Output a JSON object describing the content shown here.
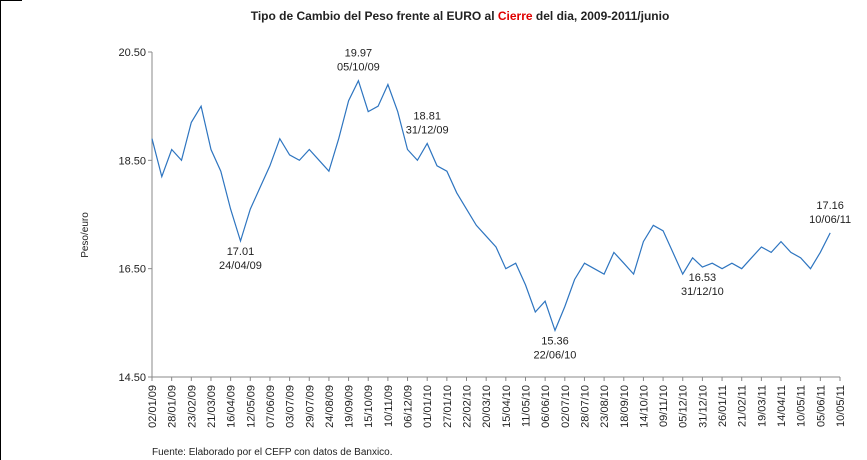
{
  "chart_data": {
    "type": "line",
    "title": [
      "Tipo de Cambio del Peso frente al EURO al ",
      "Cierre",
      " del dia, 2009-2011/junio"
    ],
    "title_highlight_color": "#e00000",
    "y_label": "Peso/euro",
    "source": "Fuente: Elaborado por el CEFP con datos de Banxico.",
    "categories": [
      "02/01/09",
      null,
      "28/01/09",
      null,
      "23/02/09",
      null,
      "21/03/09",
      null,
      "16/04/09",
      null,
      "12/05/09",
      null,
      "07/06/09",
      null,
      "03/07/09",
      null,
      "29/07/09",
      null,
      "24/08/09",
      null,
      "19/09/09",
      null,
      "15/10/09",
      null,
      "10/11/09",
      null,
      "06/12/09",
      null,
      "01/01/10",
      null,
      "27/01/10",
      null,
      "22/02/10",
      null,
      "20/03/10",
      null,
      "15/04/10",
      null,
      "11/05/10",
      null,
      "06/06/10",
      null,
      "02/07/10",
      null,
      "28/07/10",
      null,
      "23/08/10",
      null,
      "18/09/10",
      null,
      "14/10/10",
      null,
      "09/11/10",
      null,
      "05/12/10",
      null,
      "31/12/10",
      null,
      "26/01/11",
      null,
      "21/02/11",
      null,
      "19/03/11",
      null,
      "14/04/11",
      null,
      "10/05/11",
      null,
      "05/06/11",
      null,
      "10/05/11"
    ],
    "series": [
      {
        "name": "Peso/euro",
        "color": "#2e75c0",
        "values": [
          18.9,
          18.2,
          18.7,
          18.5,
          19.2,
          19.5,
          18.7,
          18.3,
          17.6,
          17.01,
          17.6,
          18.0,
          18.4,
          18.9,
          18.6,
          18.5,
          18.7,
          18.5,
          18.3,
          18.9,
          19.6,
          19.97,
          19.4,
          19.5,
          19.9,
          19.4,
          18.7,
          18.5,
          18.81,
          18.4,
          18.3,
          17.9,
          17.6,
          17.3,
          17.1,
          16.9,
          16.5,
          16.6,
          16.2,
          15.7,
          15.9,
          15.36,
          15.8,
          16.3,
          16.6,
          16.5,
          16.4,
          16.8,
          16.6,
          16.4,
          17.0,
          17.3,
          17.2,
          16.8,
          16.4,
          16.7,
          16.53,
          16.6,
          16.5,
          16.6,
          16.5,
          16.7,
          16.9,
          16.8,
          17.0,
          16.8,
          16.7,
          16.5,
          16.8,
          17.16,
          null
        ]
      }
    ],
    "annotations": [
      {
        "value": 17.01,
        "date": "24/04/09"
      },
      {
        "value": 19.97,
        "date": "05/10/09"
      },
      {
        "value": 18.81,
        "date": "31/12/09"
      },
      {
        "value": 15.36,
        "date": "22/06/10"
      },
      {
        "value": 16.53,
        "date": "31/12/10"
      },
      {
        "value": 17.16,
        "date": "10/06/11"
      }
    ],
    "ylim": [
      14.5,
      20.5
    ],
    "yticks": [
      {
        "value": 14.5,
        "label": "14.50"
      },
      {
        "value": 16.5,
        "label": "16.50"
      },
      {
        "value": 18.5,
        "label": "18.50"
      },
      {
        "value": 20.5,
        "label": "20.50"
      }
    ],
    "grid": false
  }
}
